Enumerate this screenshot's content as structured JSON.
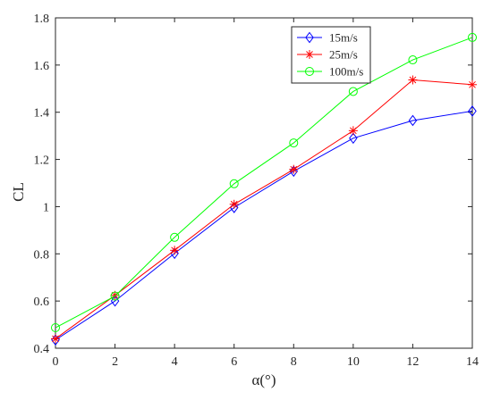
{
  "chart_data": {
    "type": "line",
    "title": "",
    "xlabel": "α(°)",
    "ylabel": "CL",
    "xlim": [
      0,
      14
    ],
    "ylim": [
      0.4,
      1.8
    ],
    "xticks": [
      "0",
      "2",
      "4",
      "6",
      "8",
      "10",
      "12",
      "14"
    ],
    "yticks": [
      "0.4",
      "0.6",
      "0.8",
      "1",
      "1.2",
      "1.4",
      "1.6",
      "1.8"
    ],
    "x": [
      0,
      2,
      4,
      6,
      8,
      10,
      12,
      14
    ],
    "grid": false,
    "legend_position": "top-right",
    "series": [
      {
        "name": "15m/s",
        "color": "#0000ff",
        "marker": "diamond",
        "values": [
          0.435,
          0.6,
          0.802,
          0.996,
          1.15,
          1.29,
          1.365,
          1.405
        ]
      },
      {
        "name": "25m/s",
        "color": "#ff0000",
        "marker": "asterisk",
        "values": [
          0.44,
          0.624,
          0.815,
          1.01,
          1.158,
          1.322,
          1.537,
          1.517
        ]
      },
      {
        "name": "100m/s",
        "color": "#00ff00",
        "marker": "circle",
        "values": [
          0.487,
          0.621,
          0.87,
          1.097,
          1.27,
          1.488,
          1.622,
          1.717
        ]
      }
    ]
  }
}
